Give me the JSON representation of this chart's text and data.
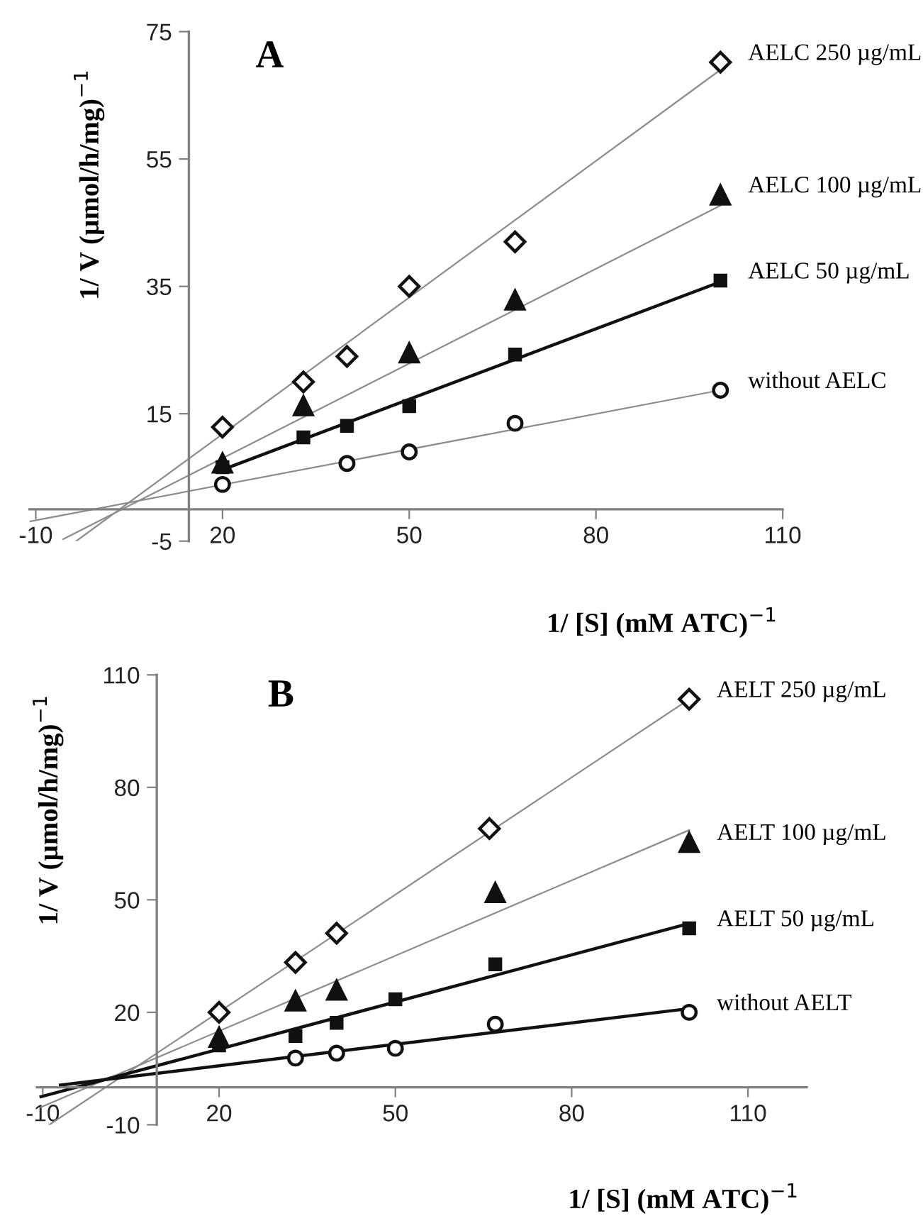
{
  "chart_data": [
    {
      "type": "scatter",
      "xlabel": "1/ [S] (mM ATC)$^{−1}$",
      "ylabel": "1/ V (µmol/h/mg)$^{−1}$",
      "annotations": [
        "A"
      ],
      "xlim": [
        -11,
        110
      ],
      "ylim": [
        -5,
        75
      ],
      "xticks": [
        -10,
        20,
        50,
        80,
        110
      ],
      "yticks": [
        -5,
        15,
        35,
        55,
        75
      ],
      "grid": false,
      "legend": false,
      "series": [
        {
          "type": "line",
          "color": "#8c8c8c",
          "x": [
            -3.5,
            100
          ],
          "values": [
            -5,
            69.0
          ],
          "line_style": "solid",
          "marker": "none"
        },
        {
          "type": "line",
          "color": "#8c8c8c",
          "x": [
            -5.6,
            100
          ],
          "values": [
            -4.7,
            47.7
          ],
          "line_style": "solid",
          "marker": "none"
        },
        {
          "type": "line",
          "color": "#111111",
          "x": [
            20,
            100
          ],
          "values": [
            6.2,
            35.7
          ],
          "line_style": "solid",
          "marker": "none"
        },
        {
          "type": "line",
          "color": "#8c8c8c",
          "x": [
            -10.9,
            100
          ],
          "values": [
            -1.9,
            18.7
          ],
          "line_style": "solid",
          "marker": "none"
        },
        {
          "name": "AELC 250 µg/mL",
          "color": "#111111",
          "marker": "diamond",
          "x": [
            20,
            33,
            40,
            50,
            67,
            100
          ],
          "values": [
            12.9,
            20.0,
            24.0,
            35.0,
            42.0,
            70.2
          ]
        },
        {
          "name": "AELC 100 µg/mL",
          "color": "#111111",
          "marker": "triangle",
          "x": [
            20,
            33,
            50,
            67,
            100
          ],
          "values": [
            7.3,
            16.3,
            24.6,
            32.9,
            49.4
          ]
        },
        {
          "name": "AELC 50 µg/mL",
          "color": "#111111",
          "marker": "square",
          "x": [
            20,
            33,
            40,
            50,
            67,
            100
          ],
          "values": [
            6.6,
            11.3,
            13.1,
            16.2,
            24.3,
            35.9
          ]
        },
        {
          "name": "without AELC",
          "color": "#111111",
          "marker": "circle",
          "x": [
            20,
            40,
            50,
            67,
            100
          ],
          "values": [
            3.9,
            7.2,
            9.0,
            13.5,
            18.7
          ]
        }
      ]
    },
    {
      "type": "scatter",
      "xlabel": "1/ [S] (mM ATC)$^{−1}$",
      "ylabel": "1/ V (µmol/h/mg)$^{−1}$",
      "annotations": [
        "B"
      ],
      "xlim": [
        -11,
        120
      ],
      "ylim": [
        -10,
        110
      ],
      "xticks": [
        -10,
        20,
        50,
        80,
        110
      ],
      "yticks": [
        -10,
        20,
        50,
        80,
        110
      ],
      "grid": false,
      "legend": false,
      "series": [
        {
          "type": "line",
          "color": "#8c8c8c",
          "x": [
            -8.9,
            100
          ],
          "values": [
            -10,
            103.5
          ],
          "line_style": "solid",
          "marker": "none"
        },
        {
          "type": "line",
          "color": "#8c8c8c",
          "x": [
            -10.3,
            100
          ],
          "values": [
            -5.3,
            68.6
          ],
          "line_style": "solid",
          "marker": "none"
        },
        {
          "type": "line",
          "color": "#111111",
          "x": [
            -10.3,
            100
          ],
          "values": [
            -2.5,
            43.7
          ],
          "line_style": "solid",
          "marker": "none"
        },
        {
          "type": "line",
          "color": "#111111",
          "x": [
            -7,
            100
          ],
          "values": [
            0.6,
            21.0
          ],
          "line_style": "solid",
          "marker": "none"
        },
        {
          "name": "AELT 250 µg/mL",
          "color": "#111111",
          "marker": "diamond",
          "x": [
            20,
            33,
            40,
            66,
            100
          ],
          "values": [
            20.0,
            33.3,
            41.1,
            69.0,
            103.5
          ]
        },
        {
          "name": "AELT 100 µg/mL",
          "color": "#111111",
          "marker": "triangle",
          "x": [
            20,
            33,
            40,
            67,
            100
          ],
          "values": [
            13.4,
            23.1,
            26.0,
            52.0,
            65.4
          ]
        },
        {
          "name": "AELT 50 µg/mL",
          "color": "#111111",
          "marker": "square",
          "x": [
            20,
            33,
            40,
            50,
            67,
            100
          ],
          "values": [
            11.2,
            13.7,
            17.2,
            23.5,
            32.8,
            42.4
          ]
        },
        {
          "name": "without AELT",
          "color": "#111111",
          "marker": "circle",
          "x": [
            33,
            40,
            50,
            67,
            100
          ],
          "values": [
            7.8,
            9.1,
            10.4,
            16.8,
            20.0
          ]
        }
      ]
    }
  ]
}
